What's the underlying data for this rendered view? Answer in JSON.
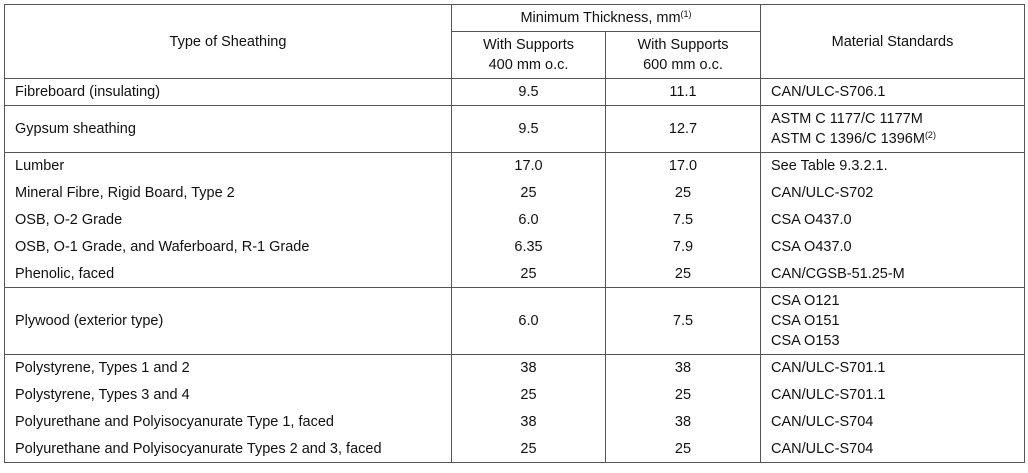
{
  "header": {
    "type_col": "Type of Sheathing",
    "min_thickness": "Minimum Thickness, mm",
    "min_thickness_note": "(1)",
    "col_400": [
      "With Supports",
      "400 mm o.c."
    ],
    "col_600": [
      "With Supports",
      "600 mm o.c."
    ],
    "standards_col": "Material Standards"
  },
  "body": [
    [
      {
        "type": "Fibreboard (insulating)",
        "v400": "9.5",
        "v600": "11.1",
        "standards": [
          "CAN/ULC-S706.1"
        ]
      }
    ],
    [
      {
        "type": "Gypsum sheathing",
        "v400": "9.5",
        "v600": "12.7",
        "standards": [
          "ASTM C 1177/C 1177M",
          "ASTM C 1396/C 1396M"
        ],
        "standards_note": "(2)"
      }
    ],
    [
      {
        "type": "Lumber",
        "v400": "17.0",
        "v600": "17.0",
        "standards": [
          "See Table 9.3.2.1."
        ]
      },
      {
        "type": "Mineral Fibre, Rigid Board, Type 2",
        "v400": "25",
        "v600": "25",
        "standards": [
          "CAN/ULC-S702"
        ]
      },
      {
        "type": "OSB, O-2 Grade",
        "v400": "6.0",
        "v600": "7.5",
        "standards": [
          "CSA O437.0"
        ]
      },
      {
        "type": "OSB, O-1 Grade, and Waferboard, R-1 Grade",
        "v400": "6.35",
        "v600": "7.9",
        "standards": [
          "CSA O437.0"
        ]
      },
      {
        "type": "Phenolic, faced",
        "v400": "25",
        "v600": "25",
        "standards": [
          "CAN/CGSB-51.25-M"
        ]
      }
    ],
    [
      {
        "type": "Plywood (exterior type)",
        "v400": "6.0",
        "v600": "7.5",
        "standards": [
          "CSA O121",
          "CSA O151",
          "CSA O153"
        ]
      }
    ],
    [
      {
        "type": "Polystyrene, Types 1 and 2",
        "v400": "38",
        "v600": "38",
        "standards": [
          "CAN/ULC-S701.1"
        ]
      },
      {
        "type": "Polystyrene, Types 3 and 4",
        "v400": "25",
        "v600": "25",
        "standards": [
          "CAN/ULC-S701.1"
        ]
      },
      {
        "type": "Polyurethane and Polyisocyanurate Type 1, faced",
        "v400": "38",
        "v600": "38",
        "standards": [
          "CAN/ULC-S704"
        ]
      },
      {
        "type": "Polyurethane and Polyisocyanurate Types 2 and 3, faced",
        "v400": "25",
        "v600": "25",
        "standards": [
          "CAN/ULC-S704"
        ]
      }
    ]
  ]
}
